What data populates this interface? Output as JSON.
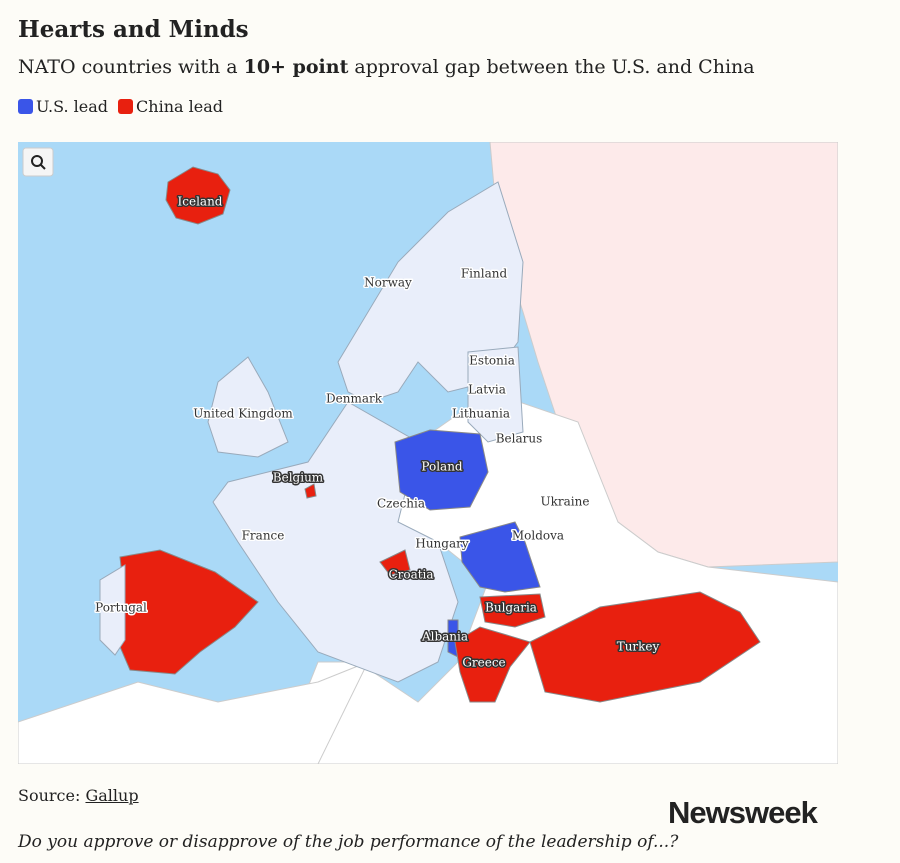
{
  "header": {
    "title": "Hearts and Minds",
    "subtitle": {
      "before": "NATO countries with a",
      "bold": "10+ point",
      "after": "approval gap between the U.S. and China"
    }
  },
  "legend": [
    {
      "label": "U.S. lead",
      "color": "#3a55e8"
    },
    {
      "label": "China lead",
      "color": "#e8200f"
    }
  ],
  "map": {
    "countries": [
      {
        "name": "Iceland",
        "lead": 1
      },
      {
        "name": "Norway",
        "lead": null
      },
      {
        "name": "Finland",
        "lead": null
      },
      {
        "name": "Estonia",
        "lead": null
      },
      {
        "name": "Latvia",
        "lead": null
      },
      {
        "name": "Lithuania",
        "lead": null
      },
      {
        "name": "Belarus",
        "lead": null
      },
      {
        "name": "Denmark",
        "lead": null
      },
      {
        "name": "United Kingdom",
        "lead": null
      },
      {
        "name": "Poland",
        "lead": 0
      },
      {
        "name": "Belgium",
        "lead": 1
      },
      {
        "name": "Czechia",
        "lead": null
      },
      {
        "name": "Ukraine",
        "lead": null
      },
      {
        "name": "France",
        "lead": null
      },
      {
        "name": "Hungary",
        "lead": null
      },
      {
        "name": "Moldova",
        "lead": null
      },
      {
        "name": "Croatia",
        "lead": 1
      },
      {
        "name": "Portugal",
        "lead": null
      },
      {
        "name": "Bulgaria",
        "lead": 1
      },
      {
        "name": "Albania",
        "lead": 0
      },
      {
        "name": "Greece",
        "lead": 1
      },
      {
        "name": "Turkey",
        "lead": 1
      }
    ]
  },
  "footer": {
    "source_label": "Source:",
    "source_link": "Gallup",
    "logo": "Newsweek",
    "question": "Do you approve or disapprove of the job performance of the leadership of...?"
  }
}
